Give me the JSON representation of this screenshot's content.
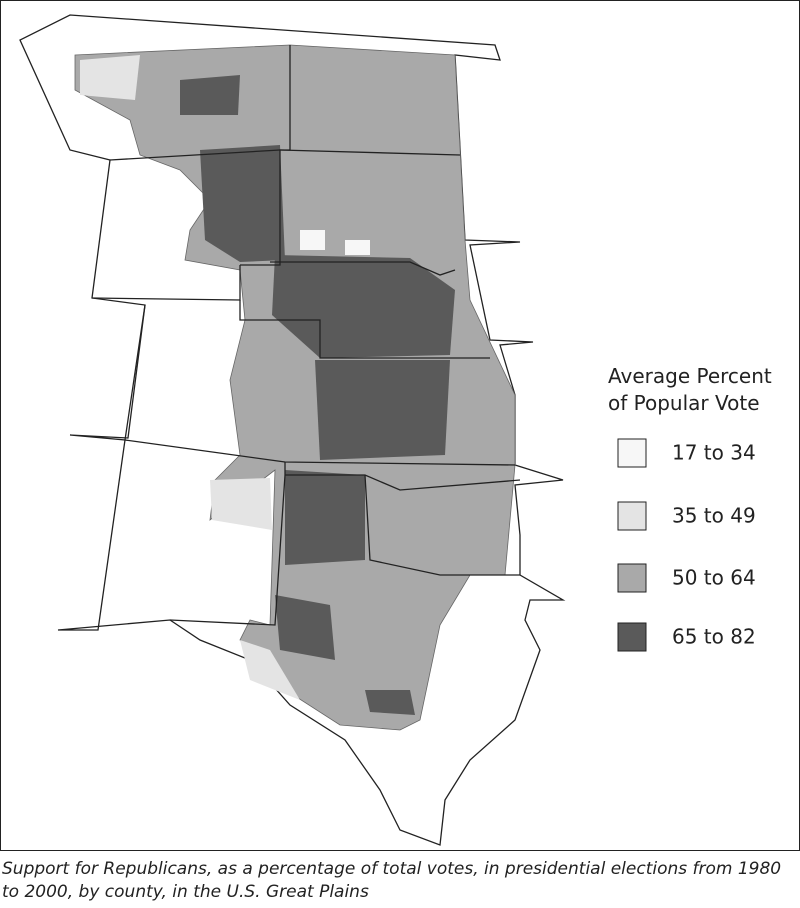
{
  "legend": {
    "title": [
      "Average Percent",
      "of Popular Vote"
    ],
    "items": [
      {
        "label": "17 to 34",
        "color": "#f7f7f7"
      },
      {
        "label": "35 to 49",
        "color": "#e4e4e4"
      },
      {
        "label": "50 to 64",
        "color": "#a9a9a9"
      },
      {
        "label": "65 to 82",
        "color": "#5a5a5a"
      }
    ]
  },
  "caption": "Support for Republicans, as a percentage of total votes, in presidential elections from 1980 to 2000, by county, in the U.S. Great Plains"
}
